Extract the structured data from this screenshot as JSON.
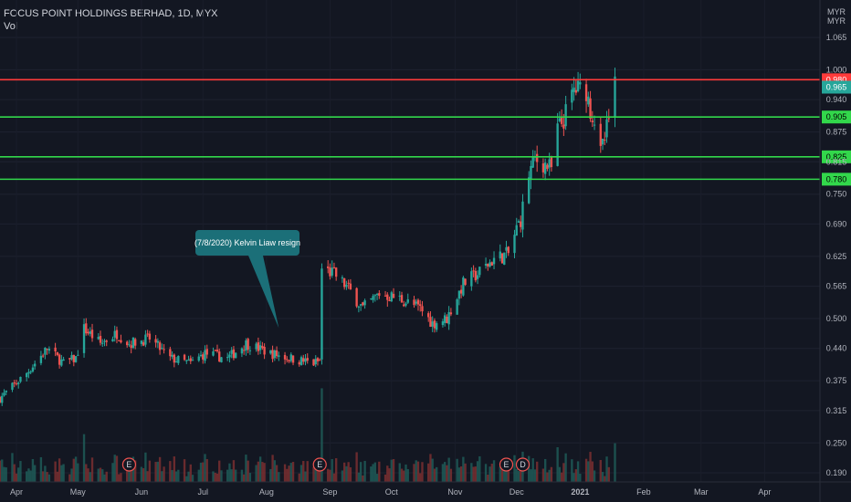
{
  "header": {
    "symbol": "FOCUS POINT HOLDINGS BERHAD, 1D, MYX",
    "volume_label": "Vol"
  },
  "currency": [
    "MYR",
    "MYR"
  ],
  "colors": {
    "background": "#131722",
    "up": "#26a69a",
    "down": "#ef5350",
    "resistance": "#ff3b3b",
    "support": "#32d74b",
    "current": "#26a69a",
    "annotation": "#1b6f78",
    "event_marker": "#ef5350"
  },
  "chart_data": {
    "type": "candlestick",
    "title": "",
    "xlabel": "",
    "ylabel": "",
    "y_ticks": [
      "0.190",
      "0.250",
      "0.315",
      "0.375",
      "0.440",
      "0.500",
      "0.565",
      "0.625",
      "0.690",
      "0.750",
      "0.815",
      "0.875",
      "0.940",
      "1.000",
      "1.065"
    ],
    "x_ticks": [
      "Apr",
      "May",
      "Jun",
      "Jul",
      "Aug",
      "Sep",
      "Oct",
      "Nov",
      "Dec",
      "2021",
      "Feb",
      "Mar",
      "Apr"
    ],
    "ylim": [
      0.175,
      1.12
    ],
    "x_range": [
      "2020-03-24",
      "2021-04-28"
    ],
    "price_lines": [
      {
        "label": "0.980",
        "value": 0.98,
        "color": "#ff3b3b"
      },
      {
        "label": "0.905",
        "value": 0.905,
        "color": "#32d74b"
      },
      {
        "label": "0.825",
        "value": 0.825,
        "color": "#32d74b"
      },
      {
        "label": "0.780",
        "value": 0.78,
        "color": "#32d74b"
      }
    ],
    "last_price": {
      "label": "0.965",
      "value": 0.965
    },
    "event_markers": [
      {
        "label": "E",
        "date": "2020-05-26"
      },
      {
        "label": "E",
        "date": "2020-08-27"
      },
      {
        "label": "E",
        "date": "2020-11-26"
      },
      {
        "label": "D",
        "date": "2020-12-04"
      }
    ],
    "annotation": {
      "text": "(7/8/2020) Kelvin Liaw resign",
      "date": "2020-08-07",
      "price": 0.47
    },
    "price_anchors": [
      [
        "2020-03-24",
        0.34
      ],
      [
        "2020-04-06",
        0.39
      ],
      [
        "2020-04-16",
        0.44
      ],
      [
        "2020-04-24",
        0.41
      ],
      [
        "2020-04-30",
        0.42
      ],
      [
        "2020-05-04",
        0.48
      ],
      [
        "2020-05-12",
        0.45
      ],
      [
        "2020-05-20",
        0.47
      ],
      [
        "2020-05-26",
        0.45
      ],
      [
        "2020-06-05",
        0.46
      ],
      [
        "2020-06-15",
        0.42
      ],
      [
        "2020-06-25",
        0.41
      ],
      [
        "2020-07-02",
        0.43
      ],
      [
        "2020-07-13",
        0.42
      ],
      [
        "2020-07-22",
        0.45
      ],
      [
        "2020-08-03",
        0.43
      ],
      [
        "2020-08-13",
        0.42
      ],
      [
        "2020-08-24",
        0.41
      ],
      [
        "2020-08-27",
        0.415
      ],
      [
        "2020-08-28",
        0.6
      ],
      [
        "2020-09-03",
        0.59
      ],
      [
        "2020-09-10",
        0.56
      ],
      [
        "2020-09-17",
        0.52
      ],
      [
        "2020-09-25",
        0.55
      ],
      [
        "2020-10-05",
        0.54
      ],
      [
        "2020-10-15",
        0.52
      ],
      [
        "2020-10-21",
        0.49
      ],
      [
        "2020-10-28",
        0.5
      ],
      [
        "2020-11-05",
        0.57
      ],
      [
        "2020-11-12",
        0.59
      ],
      [
        "2020-11-20",
        0.62
      ],
      [
        "2020-11-27",
        0.63
      ],
      [
        "2020-12-01",
        0.68
      ],
      [
        "2020-12-03",
        0.7
      ],
      [
        "2020-12-07",
        0.79
      ],
      [
        "2020-12-10",
        0.82
      ],
      [
        "2020-12-15",
        0.81
      ],
      [
        "2020-12-18",
        0.8
      ],
      [
        "2020-12-21",
        0.88
      ],
      [
        "2020-12-24",
        0.9
      ],
      [
        "2020-12-29",
        0.96
      ],
      [
        "2021-01-04",
        0.96
      ],
      [
        "2021-01-06",
        0.92
      ],
      [
        "2021-01-08",
        0.9
      ],
      [
        "2021-01-11",
        0.83
      ],
      [
        "2021-01-13",
        0.86
      ],
      [
        "2021-01-15",
        0.9
      ],
      [
        "2021-01-18",
        0.965
      ]
    ],
    "volume_range": [
      0,
      100
    ]
  }
}
